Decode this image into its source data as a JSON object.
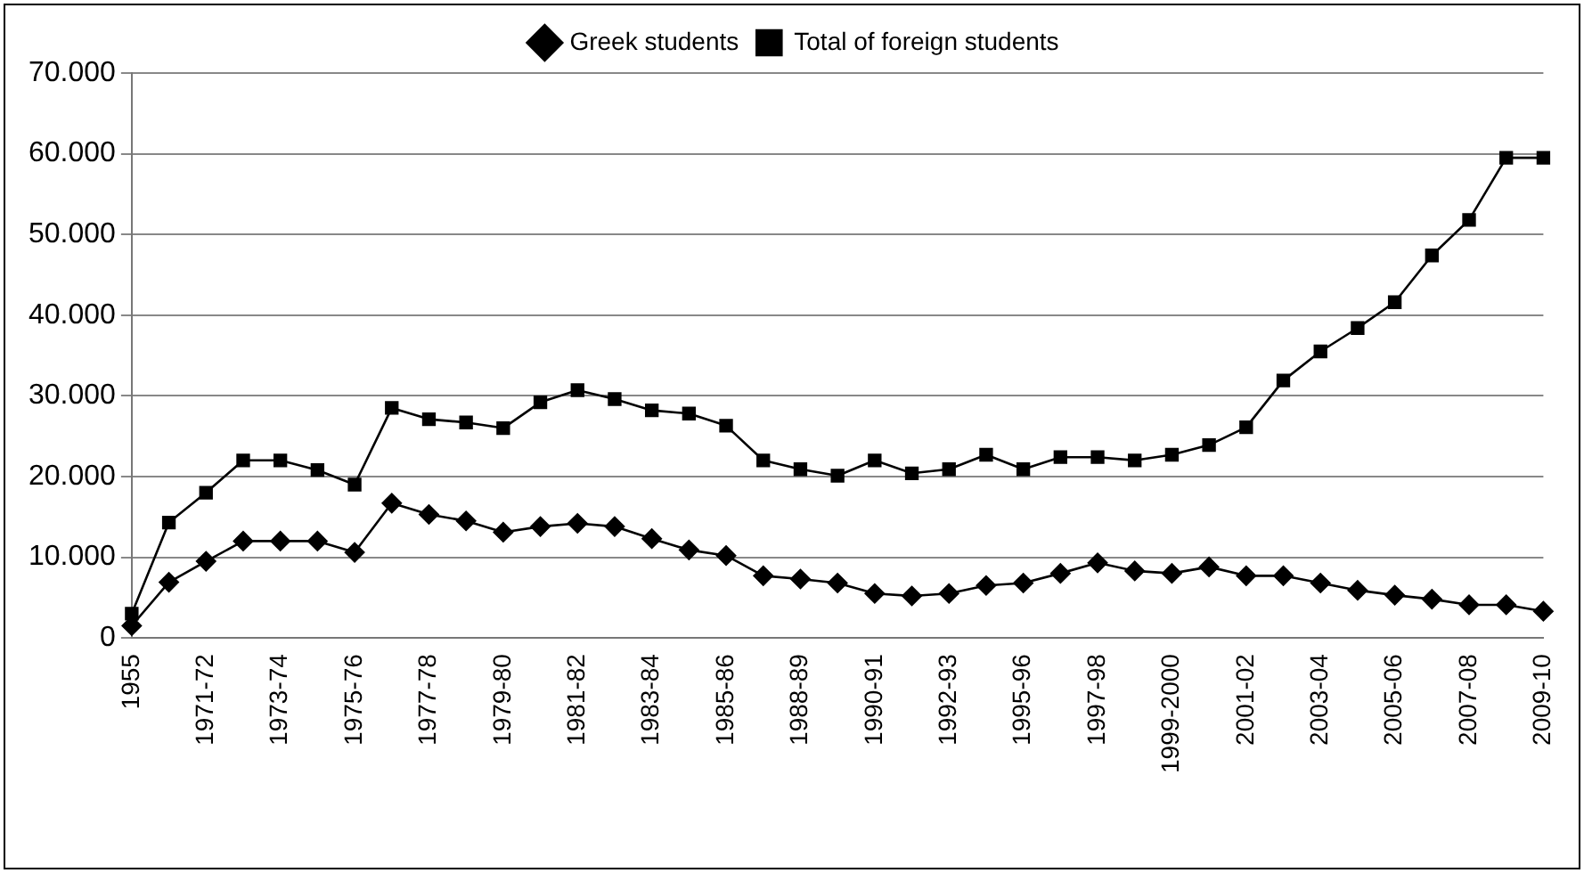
{
  "chart_data": {
    "type": "line",
    "categories": [
      "1955",
      null,
      "1971-72",
      null,
      "1973-74",
      null,
      "1975-76",
      null,
      "1977-78",
      null,
      "1979-80",
      null,
      "1981-82",
      null,
      "1983-84",
      null,
      "1985-86",
      null,
      "1988-89",
      null,
      "1990-91",
      null,
      "1992-93",
      null,
      "1995-96",
      null,
      "1997-98",
      null,
      "1999-2000",
      null,
      "2001-02",
      null,
      "2003-04",
      null,
      "2005-06",
      null,
      "2007-08",
      null,
      "2009-10"
    ],
    "series": [
      {
        "name": "Greek students",
        "color": "#000000",
        "marker": "diamond",
        "values": [
          1500,
          6900,
          9500,
          12000,
          12000,
          12000,
          10600,
          16700,
          15300,
          14500,
          13100,
          13800,
          14200,
          13800,
          12300,
          10900,
          10200,
          7700,
          7300,
          6800,
          5500,
          5200,
          5500,
          6500,
          6800,
          8000,
          9300,
          8300,
          8000,
          8800,
          7700,
          7700,
          6800,
          5900,
          5300,
          4800,
          4100,
          4100,
          3300
        ]
      },
      {
        "name": "Total of foreign students",
        "color": "#000000",
        "marker": "square",
        "values": [
          3000,
          14300,
          18000,
          22000,
          22000,
          20800,
          19000,
          28500,
          27100,
          26700,
          26000,
          29200,
          30700,
          29600,
          28200,
          27800,
          26300,
          22000,
          20900,
          20100,
          22000,
          20400,
          20900,
          22700,
          20900,
          22400,
          22400,
          22000,
          22700,
          23900,
          26100,
          31900,
          35500,
          38400,
          41600,
          47400,
          51800,
          59500,
          59500
        ]
      }
    ],
    "ylim": [
      0,
      70000
    ],
    "yticks": [
      {
        "value": 0,
        "label": "0"
      },
      {
        "value": 10000,
        "label": "10.000"
      },
      {
        "value": 20000,
        "label": "20.000"
      },
      {
        "value": 30000,
        "label": "30.000"
      },
      {
        "value": 40000,
        "label": "40.000"
      },
      {
        "value": 50000,
        "label": "50.000"
      },
      {
        "value": 60000,
        "label": "60.000"
      },
      {
        "value": 70000,
        "label": "70.000"
      }
    ],
    "grid": "y",
    "legend": "top",
    "line_style": "solid"
  }
}
